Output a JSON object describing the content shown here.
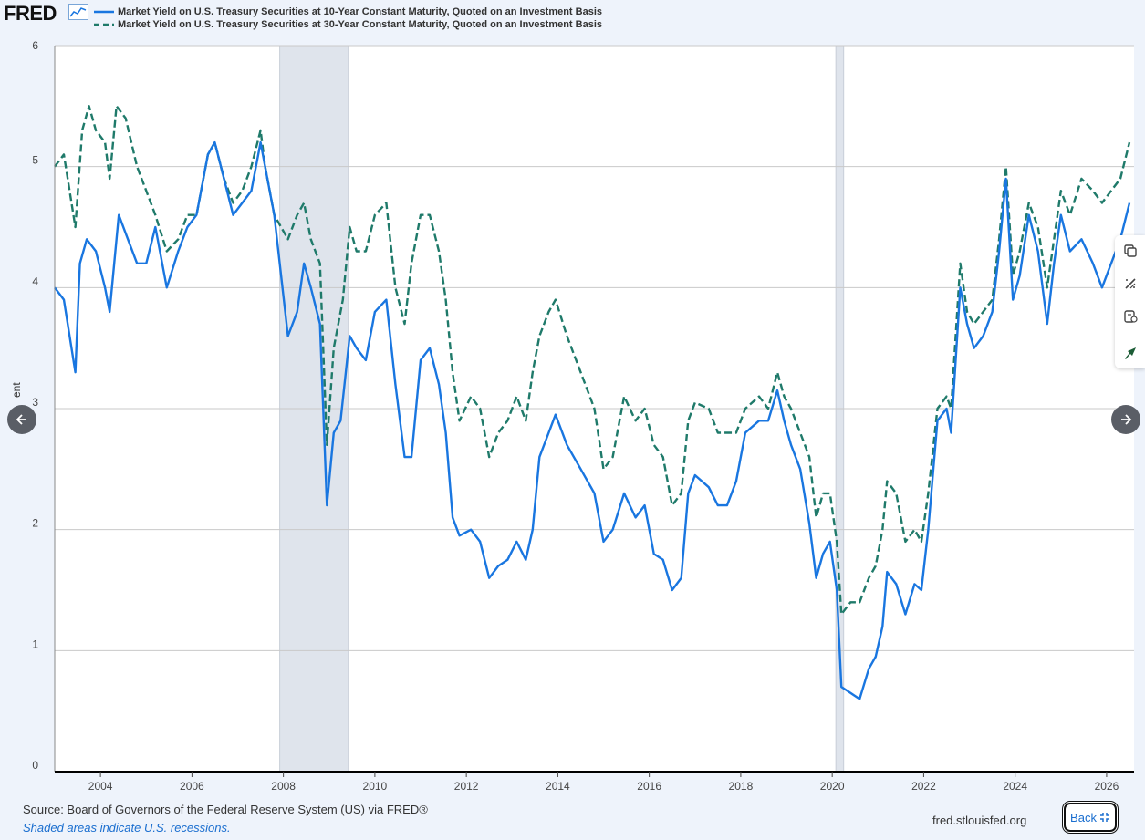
{
  "header": {
    "logo_text": "FRED",
    "logo_icon": "line-graph-icon"
  },
  "colors": {
    "series_10y": "#1976e0",
    "series_30y": "#1f7a6a",
    "recession": "#dfe4ec",
    "grid": "#c9c9c9",
    "background": "#eef3fb"
  },
  "chart_data": {
    "type": "line",
    "ylabel": "Percent",
    "ylabel_visible": "ent",
    "ylim": [
      0,
      6
    ],
    "yticks": [
      0,
      1,
      2,
      3,
      4,
      5,
      6
    ],
    "xlim": [
      2003.0,
      2026.6
    ],
    "xticks": [
      "2004",
      "2006",
      "2008",
      "2010",
      "2012",
      "2014",
      "2016",
      "2018",
      "2020",
      "2022",
      "2024",
      "2026"
    ],
    "grid": true,
    "legend_position": "top-left",
    "recessions": [
      [
        2007.92,
        2009.42
      ],
      [
        2020.08,
        2020.25
      ]
    ],
    "series": [
      {
        "name": "Market Yield on U.S. Treasury Securities at 10-Year Constant Maturity, Quoted on an Investment Basis",
        "style": "solid",
        "points": [
          [
            2003.0,
            4.0
          ],
          [
            2003.2,
            3.9
          ],
          [
            2003.45,
            3.3
          ],
          [
            2003.55,
            4.2
          ],
          [
            2003.7,
            4.4
          ],
          [
            2003.9,
            4.3
          ],
          [
            2004.1,
            4.0
          ],
          [
            2004.2,
            3.8
          ],
          [
            2004.4,
            4.6
          ],
          [
            2004.6,
            4.4
          ],
          [
            2004.8,
            4.2
          ],
          [
            2005.0,
            4.2
          ],
          [
            2005.2,
            4.5
          ],
          [
            2005.45,
            4.0
          ],
          [
            2005.7,
            4.3
          ],
          [
            2005.9,
            4.5
          ],
          [
            2006.1,
            4.6
          ],
          [
            2006.35,
            5.1
          ],
          [
            2006.5,
            5.2
          ],
          [
            2006.7,
            4.9
          ],
          [
            2006.9,
            4.6
          ],
          [
            2007.1,
            4.7
          ],
          [
            2007.3,
            4.8
          ],
          [
            2007.5,
            5.2
          ],
          [
            2007.6,
            5.0
          ],
          [
            2007.8,
            4.6
          ],
          [
            2007.95,
            4.1
          ],
          [
            2008.1,
            3.6
          ],
          [
            2008.3,
            3.8
          ],
          [
            2008.45,
            4.2
          ],
          [
            2008.6,
            4.0
          ],
          [
            2008.8,
            3.7
          ],
          [
            2008.95,
            2.2
          ],
          [
            2009.1,
            2.8
          ],
          [
            2009.25,
            2.9
          ],
          [
            2009.45,
            3.6
          ],
          [
            2009.6,
            3.5
          ],
          [
            2009.8,
            3.4
          ],
          [
            2010.0,
            3.8
          ],
          [
            2010.25,
            3.9
          ],
          [
            2010.45,
            3.2
          ],
          [
            2010.65,
            2.6
          ],
          [
            2010.8,
            2.6
          ],
          [
            2011.0,
            3.4
          ],
          [
            2011.2,
            3.5
          ],
          [
            2011.4,
            3.2
          ],
          [
            2011.55,
            2.8
          ],
          [
            2011.7,
            2.1
          ],
          [
            2011.85,
            1.95
          ],
          [
            2012.1,
            2.0
          ],
          [
            2012.3,
            1.9
          ],
          [
            2012.5,
            1.6
          ],
          [
            2012.7,
            1.7
          ],
          [
            2012.9,
            1.75
          ],
          [
            2013.1,
            1.9
          ],
          [
            2013.3,
            1.75
          ],
          [
            2013.45,
            2.0
          ],
          [
            2013.6,
            2.6
          ],
          [
            2013.8,
            2.8
          ],
          [
            2013.95,
            2.95
          ],
          [
            2014.2,
            2.7
          ],
          [
            2014.5,
            2.5
          ],
          [
            2014.8,
            2.3
          ],
          [
            2015.0,
            1.9
          ],
          [
            2015.2,
            2.0
          ],
          [
            2015.45,
            2.3
          ],
          [
            2015.7,
            2.1
          ],
          [
            2015.9,
            2.2
          ],
          [
            2016.1,
            1.8
          ],
          [
            2016.3,
            1.75
          ],
          [
            2016.5,
            1.5
          ],
          [
            2016.7,
            1.6
          ],
          [
            2016.85,
            2.3
          ],
          [
            2017.0,
            2.45
          ],
          [
            2017.3,
            2.35
          ],
          [
            2017.5,
            2.2
          ],
          [
            2017.7,
            2.2
          ],
          [
            2017.9,
            2.4
          ],
          [
            2018.1,
            2.8
          ],
          [
            2018.4,
            2.9
          ],
          [
            2018.6,
            2.9
          ],
          [
            2018.8,
            3.15
          ],
          [
            2018.95,
            2.9
          ],
          [
            2019.1,
            2.7
          ],
          [
            2019.3,
            2.5
          ],
          [
            2019.5,
            2.05
          ],
          [
            2019.65,
            1.6
          ],
          [
            2019.8,
            1.8
          ],
          [
            2019.95,
            1.9
          ],
          [
            2020.1,
            1.5
          ],
          [
            2020.2,
            0.7
          ],
          [
            2020.4,
            0.65
          ],
          [
            2020.6,
            0.6
          ],
          [
            2020.8,
            0.85
          ],
          [
            2020.95,
            0.95
          ],
          [
            2021.1,
            1.2
          ],
          [
            2021.2,
            1.65
          ],
          [
            2021.4,
            1.55
          ],
          [
            2021.6,
            1.3
          ],
          [
            2021.8,
            1.55
          ],
          [
            2021.95,
            1.5
          ],
          [
            2022.1,
            2.0
          ],
          [
            2022.3,
            2.9
          ],
          [
            2022.5,
            3.0
          ],
          [
            2022.6,
            2.8
          ],
          [
            2022.8,
            4.0
          ],
          [
            2022.95,
            3.7
          ],
          [
            2023.1,
            3.5
          ],
          [
            2023.3,
            3.6
          ],
          [
            2023.5,
            3.8
          ],
          [
            2023.65,
            4.3
          ],
          [
            2023.8,
            4.9
          ],
          [
            2023.95,
            3.9
          ],
          [
            2024.1,
            4.1
          ],
          [
            2024.3,
            4.6
          ],
          [
            2024.5,
            4.3
          ],
          [
            2024.7,
            3.7
          ],
          [
            2024.85,
            4.2
          ],
          [
            2025.0,
            4.6
          ],
          [
            2025.2,
            4.3
          ],
          [
            2025.45,
            4.4
          ],
          [
            2025.7,
            4.2
          ],
          [
            2025.9,
            4.0
          ],
          [
            2026.1,
            4.2
          ],
          [
            2026.3,
            4.4
          ],
          [
            2026.5,
            4.7
          ]
        ]
      },
      {
        "name": "Market Yield on U.S. Treasury Securities at 30-Year Constant Maturity, Quoted on an Investment Basis",
        "style": "dashed",
        "points": [
          [
            2003.0,
            5.0
          ],
          [
            2003.2,
            5.1
          ],
          [
            2003.45,
            4.5
          ],
          [
            2003.6,
            5.3
          ],
          [
            2003.75,
            5.5
          ],
          [
            2003.9,
            5.3
          ],
          [
            2004.1,
            5.2
          ],
          [
            2004.2,
            4.9
          ],
          [
            2004.35,
            5.5
          ],
          [
            2004.55,
            5.4
          ],
          [
            2004.8,
            5.0
          ],
          [
            2005.0,
            4.8
          ],
          [
            2005.2,
            4.6
          ],
          [
            2005.45,
            4.3
          ],
          [
            2005.7,
            4.4
          ],
          [
            2005.9,
            4.6
          ],
          [
            2006.1,
            4.6
          ],
          [
            2006.35,
            5.1
          ],
          [
            2006.5,
            5.2
          ],
          [
            2006.7,
            4.9
          ],
          [
            2006.9,
            4.7
          ],
          [
            2007.1,
            4.8
          ],
          [
            2007.3,
            5.0
          ],
          [
            2007.5,
            5.3
          ],
          [
            2007.6,
            5.0
          ],
          [
            2007.8,
            4.6
          ],
          [
            2007.95,
            4.5
          ],
          [
            2008.1,
            4.4
          ],
          [
            2008.3,
            4.6
          ],
          [
            2008.45,
            4.7
          ],
          [
            2008.6,
            4.4
          ],
          [
            2008.8,
            4.2
          ],
          [
            2008.95,
            2.7
          ],
          [
            2009.1,
            3.5
          ],
          [
            2009.3,
            3.9
          ],
          [
            2009.45,
            4.5
          ],
          [
            2009.6,
            4.3
          ],
          [
            2009.8,
            4.3
          ],
          [
            2010.0,
            4.6
          ],
          [
            2010.25,
            4.7
          ],
          [
            2010.45,
            4.0
          ],
          [
            2010.65,
            3.7
          ],
          [
            2010.8,
            4.2
          ],
          [
            2011.0,
            4.6
          ],
          [
            2011.2,
            4.6
          ],
          [
            2011.4,
            4.3
          ],
          [
            2011.55,
            3.9
          ],
          [
            2011.7,
            3.3
          ],
          [
            2011.85,
            2.9
          ],
          [
            2012.1,
            3.1
          ],
          [
            2012.3,
            3.0
          ],
          [
            2012.5,
            2.6
          ],
          [
            2012.7,
            2.8
          ],
          [
            2012.9,
            2.9
          ],
          [
            2013.1,
            3.1
          ],
          [
            2013.3,
            2.9
          ],
          [
            2013.45,
            3.3
          ],
          [
            2013.6,
            3.6
          ],
          [
            2013.8,
            3.8
          ],
          [
            2013.95,
            3.9
          ],
          [
            2014.2,
            3.6
          ],
          [
            2014.5,
            3.3
          ],
          [
            2014.8,
            3.0
          ],
          [
            2015.0,
            2.5
          ],
          [
            2015.2,
            2.6
          ],
          [
            2015.45,
            3.1
          ],
          [
            2015.7,
            2.9
          ],
          [
            2015.9,
            3.0
          ],
          [
            2016.1,
            2.7
          ],
          [
            2016.3,
            2.6
          ],
          [
            2016.5,
            2.2
          ],
          [
            2016.7,
            2.3
          ],
          [
            2016.85,
            2.9
          ],
          [
            2017.0,
            3.05
          ],
          [
            2017.3,
            3.0
          ],
          [
            2017.5,
            2.8
          ],
          [
            2017.7,
            2.8
          ],
          [
            2017.9,
            2.8
          ],
          [
            2018.1,
            3.0
          ],
          [
            2018.4,
            3.1
          ],
          [
            2018.6,
            3.0
          ],
          [
            2018.8,
            3.3
          ],
          [
            2018.95,
            3.1
          ],
          [
            2019.1,
            3.0
          ],
          [
            2019.3,
            2.8
          ],
          [
            2019.5,
            2.6
          ],
          [
            2019.65,
            2.1
          ],
          [
            2019.8,
            2.3
          ],
          [
            2019.95,
            2.3
          ],
          [
            2020.1,
            1.9
          ],
          [
            2020.2,
            1.3
          ],
          [
            2020.4,
            1.4
          ],
          [
            2020.6,
            1.4
          ],
          [
            2020.8,
            1.6
          ],
          [
            2020.95,
            1.7
          ],
          [
            2021.1,
            2.0
          ],
          [
            2021.2,
            2.4
          ],
          [
            2021.4,
            2.3
          ],
          [
            2021.6,
            1.9
          ],
          [
            2021.8,
            2.0
          ],
          [
            2021.95,
            1.9
          ],
          [
            2022.1,
            2.3
          ],
          [
            2022.3,
            3.0
          ],
          [
            2022.5,
            3.1
          ],
          [
            2022.6,
            3.0
          ],
          [
            2022.8,
            4.2
          ],
          [
            2022.95,
            3.8
          ],
          [
            2023.1,
            3.7
          ],
          [
            2023.3,
            3.8
          ],
          [
            2023.5,
            3.9
          ],
          [
            2023.65,
            4.4
          ],
          [
            2023.8,
            5.0
          ],
          [
            2023.95,
            4.1
          ],
          [
            2024.1,
            4.3
          ],
          [
            2024.3,
            4.7
          ],
          [
            2024.5,
            4.5
          ],
          [
            2024.7,
            4.0
          ],
          [
            2024.85,
            4.4
          ],
          [
            2025.0,
            4.8
          ],
          [
            2025.2,
            4.6
          ],
          [
            2025.45,
            4.9
          ],
          [
            2025.7,
            4.8
          ],
          [
            2025.9,
            4.7
          ],
          [
            2026.1,
            4.8
          ],
          [
            2026.3,
            4.9
          ],
          [
            2026.5,
            5.2
          ]
        ]
      }
    ]
  },
  "tools": [
    {
      "icon": "copy-icon"
    },
    {
      "icon": "edit-graph-icon"
    },
    {
      "icon": "download-icon"
    },
    {
      "icon": "share-icon"
    }
  ],
  "footer": {
    "source": "Source: Board of Governors of the Federal Reserve System (US) via FRED®",
    "note": "Shaded areas indicate U.S. recessions.",
    "url": "fred.stlouisfed.org",
    "back_label": "Back"
  }
}
